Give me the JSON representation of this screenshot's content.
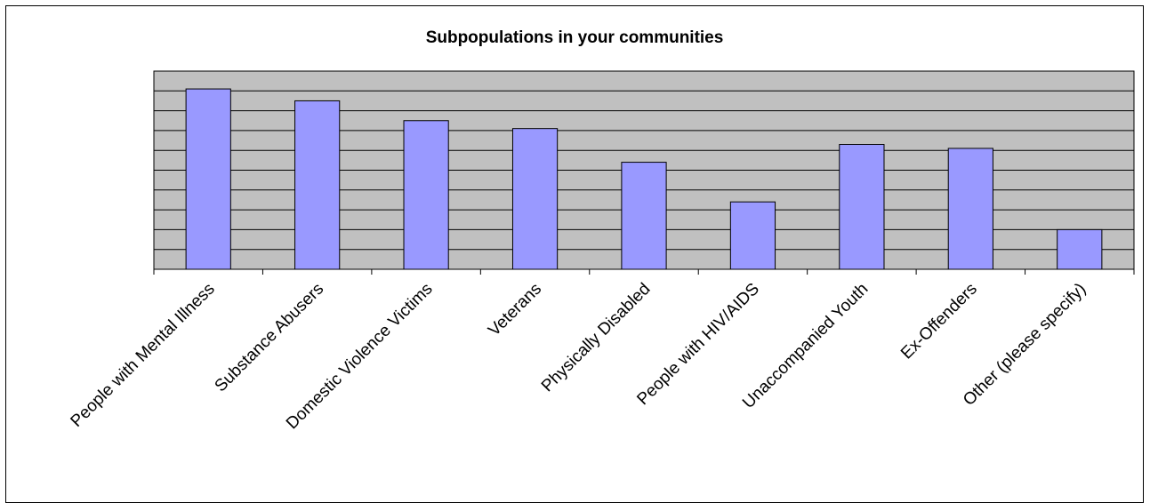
{
  "chart_data": {
    "type": "bar",
    "title": "Subpopulations in your communities",
    "categories": [
      "People with Mental Illness",
      "Substance Abusers",
      "Domestic Violence Victims",
      "Veterans",
      "Physically Disabled",
      "People with HIV/AIDS",
      "Unaccompanied Youth",
      "Ex-Offenders",
      "Other (please specify)"
    ],
    "values": [
      9.1,
      8.5,
      7.5,
      7.1,
      5.4,
      3.4,
      6.3,
      6.1,
      2.0
    ],
    "ylim": [
      0,
      10
    ],
    "y_gridlines": 10,
    "y_tick_labels_shown": false,
    "grid": true,
    "legend": "none",
    "colors": {
      "bar_fill": "#9999ff",
      "plot_background": "#c0c0c0",
      "gridline": "#000000",
      "bar_stroke": "#000000"
    }
  }
}
